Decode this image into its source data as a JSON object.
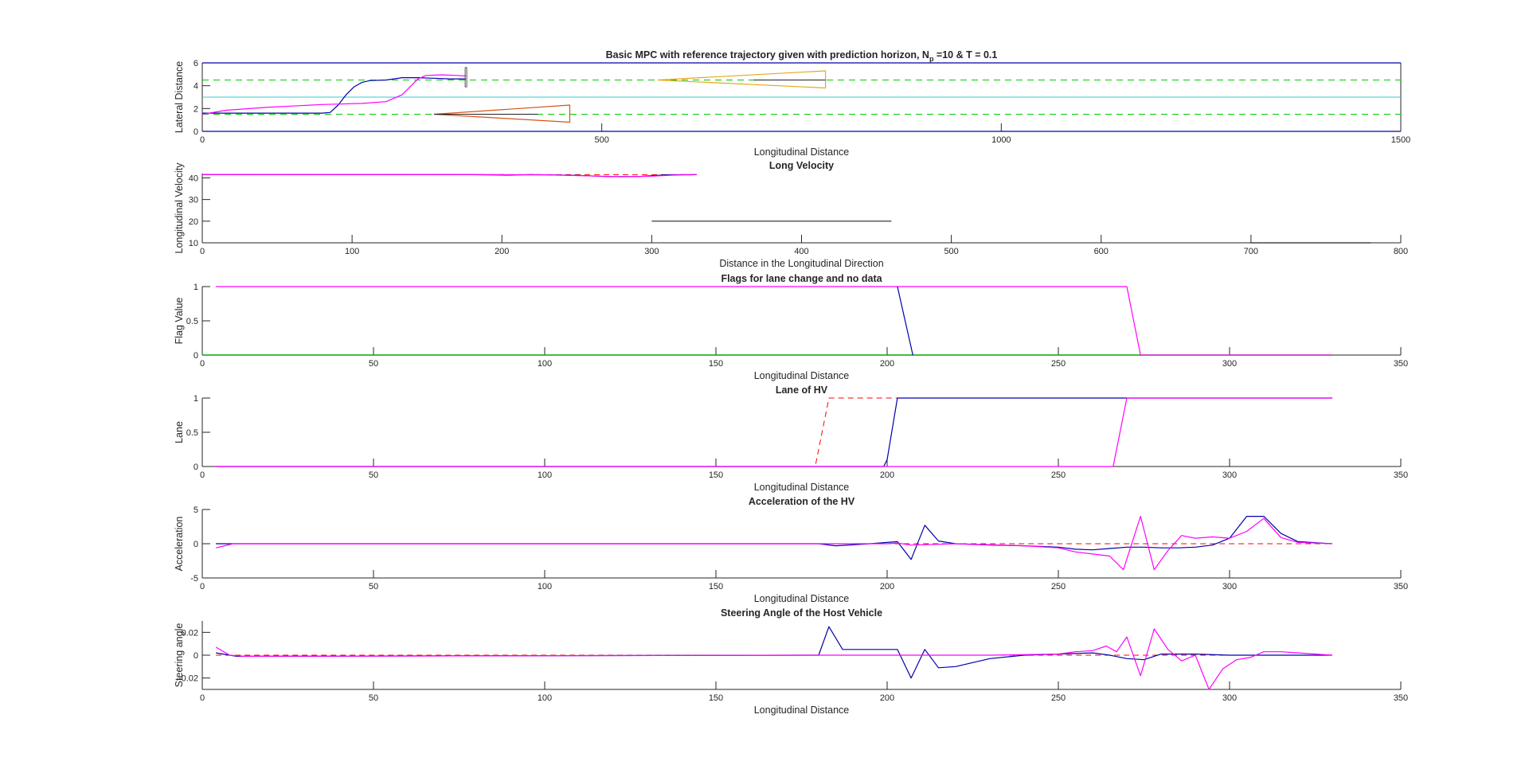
{
  "figure": {
    "background": "#ffffff"
  },
  "chart_data": [
    {
      "type": "line",
      "title": "Basic MPC with reference trajectory given with prediction horizon, N",
      "title_sub": "p",
      "title_tail": " =10 & T = 0.1",
      "xlabel": "Longitudinal Distance",
      "ylabel": "Lateral Distance",
      "xlim": [
        0,
        1500
      ],
      "ylim": [
        0,
        6
      ],
      "xticks": [
        0,
        500,
        1000,
        1500
      ],
      "yticks": [
        0,
        2,
        4,
        6
      ],
      "box": "top",
      "series": [
        {
          "color": "#0000aa",
          "width": 1.2,
          "x": [
            0,
            1500
          ],
          "y": [
            6,
            6
          ]
        },
        {
          "color": "#0000aa",
          "width": 1.2,
          "x": [
            0,
            1500
          ],
          "y": [
            0,
            0
          ]
        },
        {
          "color": "#00cc00",
          "dash": "8,6",
          "width": 1,
          "x": [
            0,
            1500
          ],
          "y": [
            4.5,
            4.5
          ]
        },
        {
          "color": "#00cc00",
          "dash": "8,6",
          "width": 1,
          "x": [
            0,
            1500
          ],
          "y": [
            1.5,
            1.5
          ]
        },
        {
          "color": "#33cccc",
          "width": 1,
          "x": [
            0,
            1500
          ],
          "y": [
            3,
            3
          ]
        },
        {
          "color": "#e6a81e",
          "width": 1.2,
          "x": [
            570,
            780,
            780,
            570
          ],
          "y": [
            4.5,
            5.3,
            3.8,
            4.5
          ]
        },
        {
          "color": "#222222",
          "width": 1,
          "x": [
            690,
            780
          ],
          "y": [
            4.5,
            4.5
          ]
        },
        {
          "color": "#d95319",
          "width": 1.2,
          "x": [
            290,
            460,
            460,
            290
          ],
          "y": [
            1.5,
            2.3,
            0.8,
            1.5
          ]
        },
        {
          "color": "#222222",
          "width": 1,
          "x": [
            290,
            420
          ],
          "y": [
            1.5,
            1.5
          ]
        },
        {
          "color": "#0000aa",
          "width": 1.2,
          "x": [
            0,
            150,
            160,
            170,
            180,
            190,
            200,
            210,
            230,
            250,
            270,
            290,
            310,
            325,
            330
          ],
          "y": [
            1.6,
            1.6,
            1.65,
            2.3,
            3.2,
            3.9,
            4.3,
            4.45,
            4.5,
            4.7,
            4.7,
            4.65,
            4.6,
            4.6,
            4.6
          ]
        },
        {
          "color": "#ff00ff",
          "width": 1.2,
          "x": [
            0,
            30,
            80,
            150,
            200,
            230,
            250,
            260,
            270,
            280,
            300,
            320,
            330
          ],
          "y": [
            1.5,
            1.85,
            2.1,
            2.35,
            2.45,
            2.6,
            3.2,
            3.9,
            4.6,
            4.9,
            4.95,
            4.9,
            4.85
          ]
        },
        {
          "color": "#555555",
          "width": 1,
          "x": [
            329,
            329,
            331,
            331,
            329
          ],
          "y": [
            5.6,
            3.9,
            3.9,
            5.6,
            5.6
          ]
        }
      ]
    },
    {
      "type": "line",
      "title": "Long Velocity",
      "xlabel": "Distance in the Longitudinal Direction",
      "ylabel": "Longitudinal Velocity",
      "xlim": [
        0,
        800
      ],
      "ylim": [
        10,
        42
      ],
      "xticks": [
        0,
        100,
        200,
        300,
        400,
        500,
        600,
        700,
        800
      ],
      "yticks": [
        10,
        20,
        30,
        40
      ],
      "box": "bottom",
      "series": [
        {
          "color": "#ff0000",
          "dash": "7,5",
          "width": 1,
          "x": [
            0,
            330
          ],
          "y": [
            41.5,
            41.5
          ]
        },
        {
          "color": "#0000aa",
          "width": 1.2,
          "x": [
            0,
            180,
            205,
            220,
            250,
            270,
            290,
            310,
            330
          ],
          "y": [
            41.5,
            41.5,
            41.3,
            41.5,
            41.2,
            40.6,
            40.6,
            41.4,
            41.5
          ]
        },
        {
          "color": "#ff00ff",
          "width": 1.2,
          "x": [
            0,
            200,
            230,
            260,
            280,
            300,
            315,
            330
          ],
          "y": [
            41.5,
            41.5,
            41.4,
            40.9,
            40.5,
            40.8,
            41.3,
            41.5
          ]
        },
        {
          "color": "#222222",
          "width": 1.2,
          "x": [
            300,
            460
          ],
          "y": [
            20,
            20
          ]
        },
        {
          "color": "#222222",
          "width": 1.2,
          "x": [
            700,
            780
          ],
          "y": [
            10,
            10
          ]
        }
      ]
    },
    {
      "type": "line",
      "title": "Flags for lane change and no data",
      "xlabel": "Longitudinal Distance",
      "ylabel": "Flag Value",
      "xlim": [
        0,
        350
      ],
      "ylim": [
        0,
        1
      ],
      "xticks": [
        0,
        50,
        100,
        150,
        200,
        250,
        300,
        350
      ],
      "yticks": [
        0,
        0.5,
        1
      ],
      "box": "bottom",
      "series": [
        {
          "color": "#00aa00",
          "width": 1.5,
          "x": [
            0,
            330
          ],
          "y": [
            0,
            0
          ]
        },
        {
          "color": "#ff00ff",
          "width": 1.2,
          "x": [
            4,
            270,
            274,
            330
          ],
          "y": [
            1,
            1,
            0,
            0
          ]
        },
        {
          "color": "#0000aa",
          "width": 1.2,
          "x": [
            203,
            207.5
          ],
          "y": [
            1,
            0
          ]
        }
      ]
    },
    {
      "type": "line",
      "title": "Lane of HV",
      "xlabel": "Longitudinal Distance",
      "ylabel": "Lane",
      "xlim": [
        0,
        350
      ],
      "ylim": [
        0,
        1
      ],
      "xticks": [
        0,
        50,
        100,
        150,
        200,
        250,
        300,
        350
      ],
      "yticks": [
        0,
        0.5,
        1
      ],
      "box": "bottom",
      "series": [
        {
          "color": "#ff0000",
          "dash": "7,5",
          "width": 1,
          "x": [
            4,
            179,
            183,
            330
          ],
          "y": [
            0,
            0,
            1,
            1
          ]
        },
        {
          "color": "#0000aa",
          "width": 1.2,
          "x": [
            4,
            199,
            200,
            203,
            330
          ],
          "y": [
            0,
            0,
            0.1,
            1,
            1
          ]
        },
        {
          "color": "#ff00ff",
          "width": 1.2,
          "x": [
            4,
            266,
            270,
            330
          ],
          "y": [
            0,
            0,
            1,
            1
          ]
        }
      ]
    },
    {
      "type": "line",
      "title": "Acceleration of the HV",
      "xlabel": "Longitudinal Distance",
      "ylabel": "Acceleration",
      "xlim": [
        0,
        350
      ],
      "ylim": [
        -5,
        5
      ],
      "xticks": [
        0,
        50,
        100,
        150,
        200,
        250,
        300,
        350
      ],
      "yticks": [
        -5,
        0,
        5
      ],
      "box": "bottom",
      "series": [
        {
          "color": "#ff0000",
          "dash": "7,5",
          "width": 1,
          "x": [
            4,
            330
          ],
          "y": [
            0,
            0
          ]
        },
        {
          "color": "#0000aa",
          "width": 1.2,
          "x": [
            4,
            9,
            180,
            185,
            195,
            203,
            207,
            211,
            215,
            220,
            230,
            240,
            250,
            255,
            260,
            265,
            270,
            275,
            280,
            285,
            290,
            295,
            300,
            305,
            310,
            315,
            320,
            330
          ],
          "y": [
            0,
            0,
            0,
            -0.3,
            0,
            0.3,
            -2.3,
            2.7,
            0.4,
            0,
            -0.2,
            -0.3,
            -0.5,
            -0.8,
            -0.9,
            -0.7,
            -0.5,
            -0.5,
            -0.6,
            -0.6,
            -0.5,
            -0.2,
            0.8,
            4,
            4,
            1.5,
            0.3,
            0
          ]
        },
        {
          "color": "#ff00ff",
          "width": 1.2,
          "x": [
            4,
            9,
            180,
            200,
            203,
            207,
            220,
            240,
            250,
            255,
            260,
            265,
            269,
            274,
            278,
            282,
            286,
            290,
            295,
            300,
            305,
            310,
            315,
            320,
            330
          ],
          "y": [
            -0.6,
            0,
            0,
            0,
            0.1,
            -0.2,
            0,
            -0.3,
            -0.6,
            -1.2,
            -1.5,
            -1.8,
            -3.8,
            4,
            -3.8,
            -1,
            1.2,
            0.8,
            1,
            0.8,
            1.8,
            3.7,
            0.9,
            0.2,
            0
          ]
        }
      ]
    },
    {
      "type": "line",
      "title": "Steering Angle of the Host Vehicle",
      "xlabel": "Longitudinal Distance",
      "ylabel": "Steering angle",
      "xlim": [
        0,
        350
      ],
      "ylim": [
        -0.03,
        0.03
      ],
      "xticks": [
        0,
        50,
        100,
        150,
        200,
        250,
        300,
        350
      ],
      "yticks": [
        -0.02,
        0,
        0.02
      ],
      "box": "bottom",
      "series": [
        {
          "color": "#ff0000",
          "dash": "7,5",
          "width": 1,
          "x": [
            4,
            330
          ],
          "y": [
            0,
            0
          ]
        },
        {
          "color": "#0000aa",
          "width": 1.2,
          "x": [
            4,
            10,
            180,
            183,
            187,
            203,
            207,
            211,
            215,
            220,
            230,
            240,
            250,
            260,
            265,
            270,
            275,
            280,
            290,
            300,
            310,
            320,
            330
          ],
          "y": [
            0.002,
            -0.001,
            0,
            0.025,
            0.005,
            0.005,
            -0.02,
            0.005,
            -0.011,
            -0.01,
            -0.003,
            0,
            0.001,
            0.002,
            0,
            -0.003,
            -0.004,
            0.001,
            0.001,
            0,
            0,
            0,
            0
          ]
        },
        {
          "color": "#ff00ff",
          "width": 1.2,
          "x": [
            4,
            8,
            12,
            180,
            230,
            250,
            255,
            260,
            264,
            267,
            270,
            274,
            278,
            282,
            286,
            290,
            294,
            298,
            302,
            306,
            310,
            315,
            320,
            325,
            330
          ],
          "y": [
            0.007,
            0,
            -0.001,
            0,
            0,
            0.001,
            0.003,
            0.004,
            0.008,
            0.003,
            0.016,
            -0.018,
            0.023,
            0.005,
            -0.005,
            0,
            -0.03,
            -0.012,
            -0.004,
            -0.002,
            0.003,
            0.003,
            0.002,
            0.001,
            0
          ]
        }
      ]
    }
  ]
}
